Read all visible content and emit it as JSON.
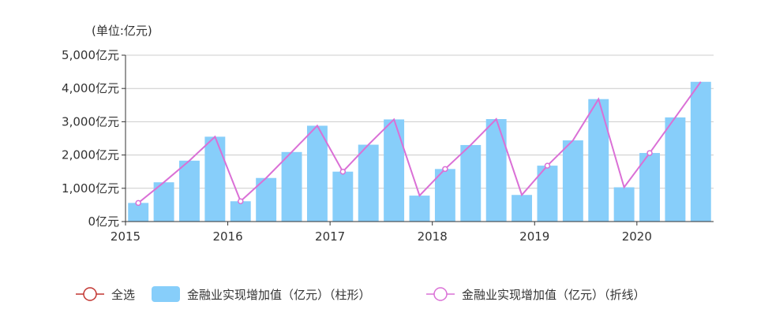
{
  "chart_data": {
    "type": "bar",
    "unit_label": "(单位:亿元)",
    "y_tick_suffix": "亿元",
    "ylim": [
      0,
      5000
    ],
    "y_ticks": [
      0,
      1000,
      2000,
      3000,
      4000,
      5000
    ],
    "y_tick_labels": [
      "0亿元",
      "1,000亿元",
      "2,000亿元",
      "3,000亿元",
      "4,000亿元",
      "5,000亿元"
    ],
    "grid": true,
    "legend_position": "bottom",
    "x_labels": [
      "2015",
      "2016",
      "2017",
      "2018",
      "2019",
      "2020"
    ],
    "categories": [
      "2015Q1",
      "2015Q2",
      "2015Q3",
      "2015Q4",
      "2016Q1",
      "2016Q2",
      "2016Q3",
      "2016Q4",
      "2017Q1",
      "2017Q2",
      "2017Q3",
      "2017Q4",
      "2018Q1",
      "2018Q2",
      "2018Q3",
      "2018Q4",
      "2019Q1",
      "2019Q2",
      "2019Q3",
      "2019Q4",
      "2020Q1",
      "2020Q2",
      "2020Q3"
    ],
    "values": [
      560,
      1180,
      1830,
      2550,
      610,
      1310,
      2090,
      2880,
      1500,
      2310,
      3070,
      780,
      1580,
      2300,
      3080,
      800,
      1680,
      2440,
      3680,
      1030,
      2060,
      3130,
      4200
    ],
    "series": [
      {
        "name": "金融业实现增加值（亿元）（柱形）",
        "type": "bar",
        "color": "#87cefa"
      },
      {
        "name": "金融业实现增加值（亿元）（折线）",
        "type": "line",
        "color": "#da70d6"
      }
    ],
    "legend": {
      "select_all_label": "全选",
      "select_all_color": "#c23531"
    }
  }
}
